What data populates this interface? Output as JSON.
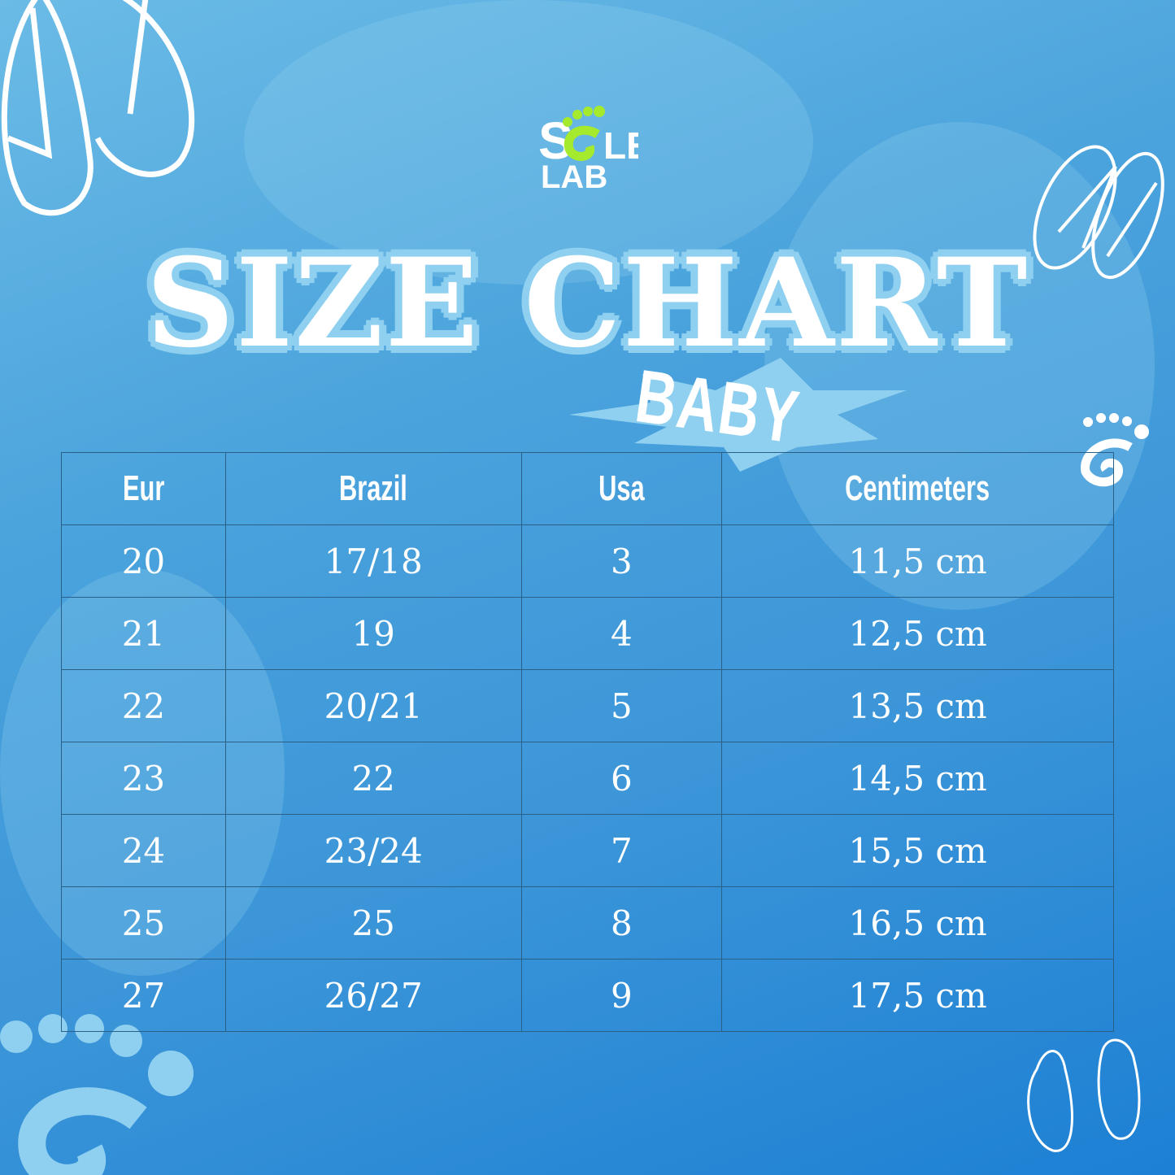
{
  "brand": {
    "logo_text": "SOLE LAB",
    "logo_color": "#a6ea2e"
  },
  "title": "SIZE CHART",
  "subtitle": "BABY",
  "table": {
    "headers": [
      "Eur",
      "Brazil",
      "Usa",
      "Centimeters"
    ],
    "rows": [
      [
        "20",
        "17/18",
        "3",
        "11,5 cm"
      ],
      [
        "21",
        "19",
        "4",
        "12,5 cm"
      ],
      [
        "22",
        "20/21",
        "5",
        "13,5 cm"
      ],
      [
        "23",
        "22",
        "6",
        "14,5 cm"
      ],
      [
        "24",
        "23/24",
        "7",
        "15,5 cm"
      ],
      [
        "25",
        "25",
        "8",
        "16,5 cm"
      ],
      [
        "27",
        "26/27",
        "9",
        "17,5 cm"
      ]
    ]
  },
  "colors": {
    "background": "#3b95d8",
    "accent": "#8fd0f0"
  }
}
